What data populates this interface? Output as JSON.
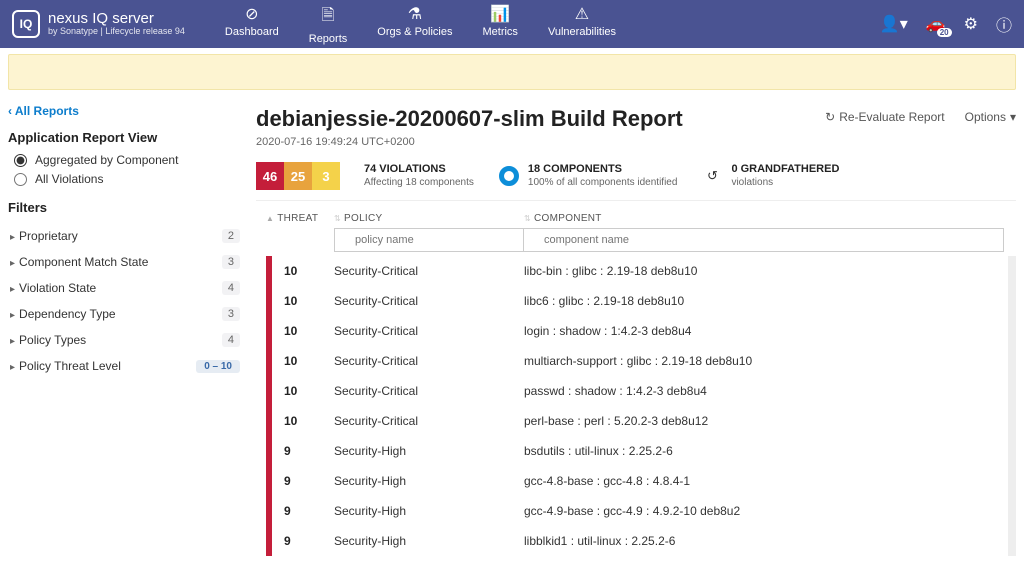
{
  "brand": {
    "title": "nexus IQ server",
    "sub": "by Sonatype  |  Lifecycle release 94",
    "logo": "IQ"
  },
  "nav": [
    {
      "label": "Dashboard",
      "icon": "⊘"
    },
    {
      "label": "Reports",
      "icon": "🗎"
    },
    {
      "label": "Orgs & Policies",
      "icon": "⚗"
    },
    {
      "label": "Metrics",
      "icon": "📊"
    },
    {
      "label": "Vulnerabilities",
      "icon": "⚠"
    }
  ],
  "nav_right_badge": "20",
  "back_link": "All Reports",
  "view_title": "Application Report View",
  "view_options": [
    {
      "label": "Aggregated by Component",
      "checked": true
    },
    {
      "label": "All Violations",
      "checked": false
    }
  ],
  "filters_title": "Filters",
  "filters": [
    {
      "label": "Proprietary",
      "count": "2"
    },
    {
      "label": "Component Match State",
      "count": "3"
    },
    {
      "label": "Violation State",
      "count": "4"
    },
    {
      "label": "Dependency Type",
      "count": "3"
    },
    {
      "label": "Policy Types",
      "count": "4"
    },
    {
      "label": "Policy Threat Level",
      "range": "0 – 10"
    }
  ],
  "report": {
    "title": "debianjessie-20200607-slim Build Report",
    "timestamp": "2020-07-16 19:49:24 UTC+0200",
    "actions": {
      "reeval": "Re-Evaluate Report",
      "options": "Options"
    }
  },
  "severity": {
    "boxes": [
      {
        "value": "46",
        "color": "#c41e3a"
      },
      {
        "value": "25",
        "color": "#e8a33d"
      },
      {
        "value": "3",
        "color": "#f4d24a"
      }
    ]
  },
  "stats": {
    "violations": {
      "top": "74 VIOLATIONS",
      "sub": "Affecting 18 components"
    },
    "components": {
      "top": "18 COMPONENTS",
      "sub": "100% of all components identified"
    },
    "grandfathered": {
      "top": "0 GRANDFATHERED",
      "sub": "violations"
    }
  },
  "columns": {
    "threat": "THREAT",
    "policy": "POLICY",
    "component": "COMPONENT"
  },
  "filter_placeholders": {
    "policy": "policy name",
    "component": "component name"
  },
  "rows": [
    {
      "threat": "10",
      "bar": "#c41e3a",
      "policy": "Security-Critical",
      "component": "libc-bin : glibc : 2.19-18 deb8u10"
    },
    {
      "threat": "10",
      "bar": "#c41e3a",
      "policy": "Security-Critical",
      "component": "libc6 : glibc : 2.19-18 deb8u10"
    },
    {
      "threat": "10",
      "bar": "#c41e3a",
      "policy": "Security-Critical",
      "component": "login : shadow : 1:4.2-3 deb8u4"
    },
    {
      "threat": "10",
      "bar": "#c41e3a",
      "policy": "Security-Critical",
      "component": "multiarch-support : glibc : 2.19-18 deb8u10"
    },
    {
      "threat": "10",
      "bar": "#c41e3a",
      "policy": "Security-Critical",
      "component": "passwd : shadow : 1:4.2-3 deb8u4"
    },
    {
      "threat": "10",
      "bar": "#c41e3a",
      "policy": "Security-Critical",
      "component": "perl-base : perl : 5.20.2-3 deb8u12"
    },
    {
      "threat": "9",
      "bar": "#c41e3a",
      "policy": "Security-High",
      "component": "bsdutils : util-linux : 2.25.2-6"
    },
    {
      "threat": "9",
      "bar": "#c41e3a",
      "policy": "Security-High",
      "component": "gcc-4.8-base : gcc-4.8 : 4.8.4-1"
    },
    {
      "threat": "9",
      "bar": "#c41e3a",
      "policy": "Security-High",
      "component": "gcc-4.9-base : gcc-4.9 : 4.9.2-10 deb8u2"
    },
    {
      "threat": "9",
      "bar": "#c41e3a",
      "policy": "Security-High",
      "component": "libblkid1 : util-linux : 2.25.2-6"
    }
  ]
}
